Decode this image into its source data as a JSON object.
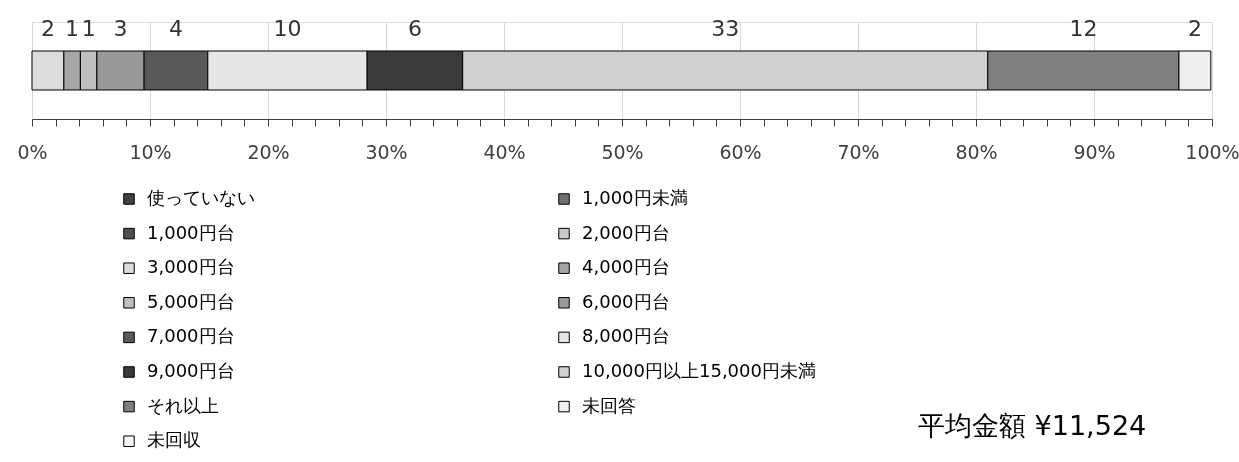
{
  "chart_data": {
    "type": "bar",
    "orientation": "horizontal",
    "stacked": true,
    "categories": [
      null
    ],
    "series": [
      {
        "name": "使っていない",
        "color": "#404040",
        "values": [
          null
        ]
      },
      {
        "name": "1,000円未満",
        "color": "#707070",
        "values": [
          null
        ]
      },
      {
        "name": "1,000円台",
        "color": "#505050",
        "values": [
          null
        ]
      },
      {
        "name": "2,000円台",
        "color": "#c8c8c8",
        "values": [
          null
        ]
      },
      {
        "name": "3,000円台",
        "color": "#dcdcdc",
        "values": [
          2.7
        ]
      },
      {
        "name": "4,000円台",
        "color": "#a6a6a6",
        "values": [
          1.4
        ]
      },
      {
        "name": "5,000円台",
        "color": "#bfbfbf",
        "values": [
          1.4
        ]
      },
      {
        "name": "6,000円台",
        "color": "#999999",
        "values": [
          4.0
        ]
      },
      {
        "name": "7,000円台",
        "color": "#595959",
        "values": [
          5.4
        ]
      },
      {
        "name": "8,000円台",
        "color": "#e6e6e6",
        "values": [
          13.5
        ]
      },
      {
        "name": "9,000円台",
        "color": "#3a3a3a",
        "values": [
          8.1
        ]
      },
      {
        "name": "10,000円以上15,000円未満",
        "color": "#d0d0d0",
        "values": [
          44.5
        ]
      },
      {
        "name": "それ以上",
        "color": "#808080",
        "values": [
          16.2
        ]
      },
      {
        "name": "未回答",
        "color": "#efefef",
        "values": [
          2.7
        ]
      },
      {
        "name": "未回収",
        "color": "#f7f7f7",
        "values": [
          null
        ]
      }
    ],
    "xlim": [
      0,
      100
    ],
    "xticks": [
      {
        "value": 0,
        "label": "0%"
      },
      {
        "value": 2,
        "label": null
      },
      {
        "value": 4,
        "label": null
      },
      {
        "value": 6,
        "label": null
      },
      {
        "value": 8,
        "label": null
      },
      {
        "value": 10,
        "label": "10%"
      },
      {
        "value": 12,
        "label": null
      },
      {
        "value": 14,
        "label": null
      },
      {
        "value": 16,
        "label": null
      },
      {
        "value": 18,
        "label": null
      },
      {
        "value": 20,
        "label": "20%"
      },
      {
        "value": 22,
        "label": null
      },
      {
        "value": 24,
        "label": null
      },
      {
        "value": 26,
        "label": null
      },
      {
        "value": 28,
        "label": null
      },
      {
        "value": 30,
        "label": "30%"
      },
      {
        "value": 32,
        "label": null
      },
      {
        "value": 34,
        "label": null
      },
      {
        "value": 36,
        "label": null
      },
      {
        "value": 38,
        "label": null
      },
      {
        "value": 40,
        "label": "40%"
      },
      {
        "value": 42,
        "label": null
      },
      {
        "value": 44,
        "label": null
      },
      {
        "value": 46,
        "label": null
      },
      {
        "value": 48,
        "label": null
      },
      {
        "value": 50,
        "label": "50%"
      },
      {
        "value": 52,
        "label": null
      },
      {
        "value": 54,
        "label": null
      },
      {
        "value": 56,
        "label": null
      },
      {
        "value": 58,
        "label": null
      },
      {
        "value": 60,
        "label": "60%"
      },
      {
        "value": 62,
        "label": null
      },
      {
        "value": 64,
        "label": null
      },
      {
        "value": 66,
        "label": null
      },
      {
        "value": 68,
        "label": null
      },
      {
        "value": 70,
        "label": "70%"
      },
      {
        "value": 72,
        "label": null
      },
      {
        "value": 74,
        "label": null
      },
      {
        "value": 76,
        "label": null
      },
      {
        "value": 78,
        "label": null
      },
      {
        "value": 80,
        "label": "80%"
      },
      {
        "value": 82,
        "label": null
      },
      {
        "value": 84,
        "label": null
      },
      {
        "value": 86,
        "label": null
      },
      {
        "value": 88,
        "label": null
      },
      {
        "value": 90,
        "label": "90%"
      },
      {
        "value": 92,
        "label": null
      },
      {
        "value": 94,
        "label": null
      },
      {
        "value": 96,
        "label": null
      },
      {
        "value": 98,
        "label": null
      },
      {
        "value": 100,
        "label": "100%"
      }
    ],
    "grid": "x",
    "legend": "bottom",
    "tick_labels": "x",
    "annotations": [
      "2",
      "1",
      "1",
      "3",
      "4",
      "10",
      "6",
      "33",
      "12",
      "2",
      "平均金額 ¥11,524"
    ]
  }
}
